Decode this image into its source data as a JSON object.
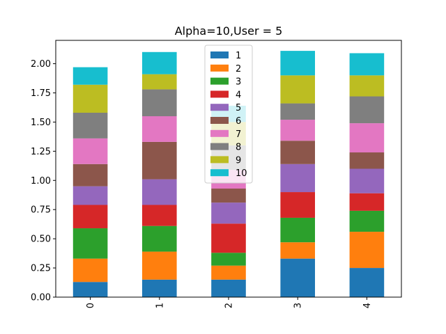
{
  "chart_data": {
    "type": "bar",
    "stacked": true,
    "title": "Alpha=10,User = 5",
    "xlabel": "",
    "ylabel": "",
    "categories": [
      "0",
      "1",
      "2",
      "3",
      "4"
    ],
    "ylim": [
      0,
      2.2
    ],
    "yticks": [
      0.0,
      0.25,
      0.5,
      0.75,
      1.0,
      1.25,
      1.5,
      1.75,
      2.0
    ],
    "ytick_labels": [
      "0.00",
      "0.25",
      "0.50",
      "0.75",
      "1.00",
      "1.25",
      "1.50",
      "1.75",
      "2.00"
    ],
    "legend_position": "top-center",
    "grid": false,
    "series": [
      {
        "name": "1",
        "color": "#1f77b4",
        "values": [
          0.13,
          0.15,
          0.15,
          0.33,
          0.25
        ]
      },
      {
        "name": "2",
        "color": "#ff7f0e",
        "values": [
          0.2,
          0.24,
          0.12,
          0.14,
          0.31
        ]
      },
      {
        "name": "3",
        "color": "#2ca02c",
        "values": [
          0.26,
          0.22,
          0.11,
          0.21,
          0.18
        ]
      },
      {
        "name": "4",
        "color": "#d62728",
        "values": [
          0.2,
          0.18,
          0.25,
          0.22,
          0.15
        ]
      },
      {
        "name": "5",
        "color": "#9467bd",
        "values": [
          0.16,
          0.22,
          0.18,
          0.24,
          0.21
        ]
      },
      {
        "name": "6",
        "color": "#8c564b",
        "values": [
          0.19,
          0.32,
          0.12,
          0.2,
          0.14
        ]
      },
      {
        "name": "7",
        "color": "#e377c2",
        "values": [
          0.22,
          0.22,
          0.16,
          0.18,
          0.25
        ]
      },
      {
        "name": "8",
        "color": "#7f7f7f",
        "values": [
          0.22,
          0.23,
          0.21,
          0.14,
          0.23
        ]
      },
      {
        "name": "9",
        "color": "#bcbd22",
        "values": [
          0.24,
          0.13,
          0.2,
          0.24,
          0.18
        ]
      },
      {
        "name": "10",
        "color": "#17becf",
        "values": [
          0.15,
          0.19,
          0.14,
          0.21,
          0.19
        ]
      }
    ]
  }
}
